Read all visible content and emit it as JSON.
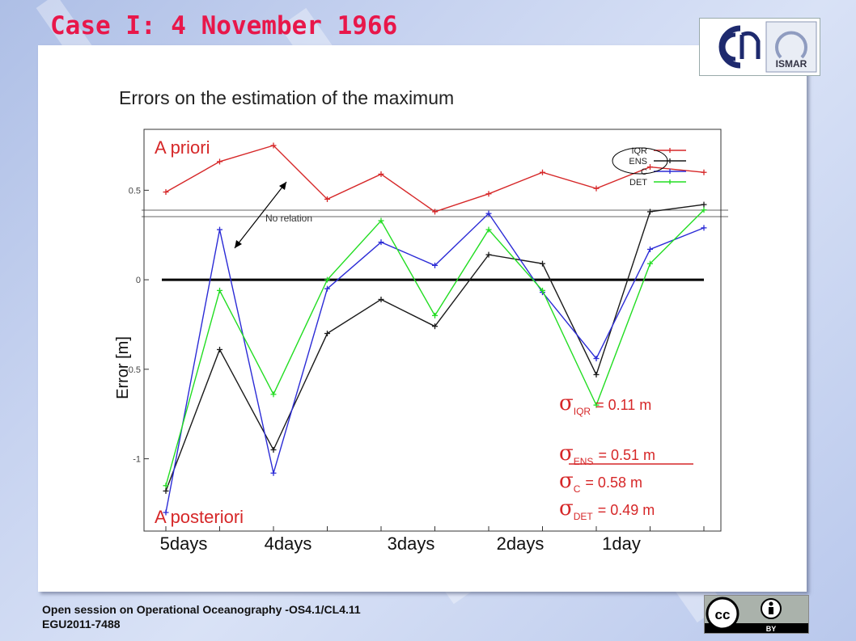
{
  "slide": {
    "title": "Case I: 4 November 1966",
    "subtitle": "Errors on the estimation of the maximum",
    "footer_line1": "Open session on Operational Oceanography -OS4.1/CL4.11",
    "footer_line2": "EGU2011-7488",
    "logo_text": "ISMAR",
    "license_label": "BY"
  },
  "colors": {
    "title": "#e8174a",
    "IQR": "#d62728",
    "ENS": "#1a1a1a",
    "C": "#2b2bd6",
    "DET": "#22dd22",
    "annotation": "#d62728"
  },
  "chart_data": {
    "type": "line",
    "ylabel": "Error [m]",
    "ylim": [
      -1.35,
      0.85
    ],
    "yticks": [
      -1,
      -0.5,
      0,
      0.5
    ],
    "ytick_labels": [
      "-1",
      "-0.5",
      "0",
      "0.5"
    ],
    "x": [
      1,
      2,
      3,
      4,
      5,
      6,
      7,
      8,
      9,
      10,
      11
    ],
    "x_group_labels": [
      "5days",
      "4days",
      "3days",
      "2days",
      "1day"
    ],
    "zero_line": true,
    "series": [
      {
        "name": "IQR",
        "values": [
          0.49,
          0.66,
          0.75,
          0.45,
          0.59,
          0.38,
          0.48,
          0.6,
          0.51,
          0.63,
          0.6
        ]
      },
      {
        "name": "ENS",
        "values": [
          -1.18,
          -0.39,
          -0.95,
          -0.3,
          -0.11,
          -0.26,
          0.14,
          0.09,
          -0.53,
          0.38,
          0.42
        ]
      },
      {
        "name": "C",
        "values": [
          -1.3,
          0.28,
          -1.08,
          -0.05,
          0.21,
          0.08,
          0.37,
          -0.07,
          -0.44,
          0.17,
          0.29
        ]
      },
      {
        "name": "DET",
        "values": [
          -1.15,
          -0.06,
          -0.64,
          0.0,
          0.33,
          -0.2,
          0.28,
          -0.06,
          -0.7,
          0.09,
          0.39
        ]
      }
    ],
    "legend_position": "top-right",
    "annotations": {
      "a_priori": "A priori",
      "a_posteriori": "A posteriori",
      "no_relation": "No relation",
      "stats": [
        {
          "sub": "IQR",
          "text": "=    0.11 m"
        },
        {
          "sub": "ENS",
          "text": "=   0.51 m"
        },
        {
          "sub": "C",
          "text": "=    0.58 m"
        },
        {
          "sub": "DET",
          "text": "=  0.49 m"
        }
      ]
    }
  }
}
